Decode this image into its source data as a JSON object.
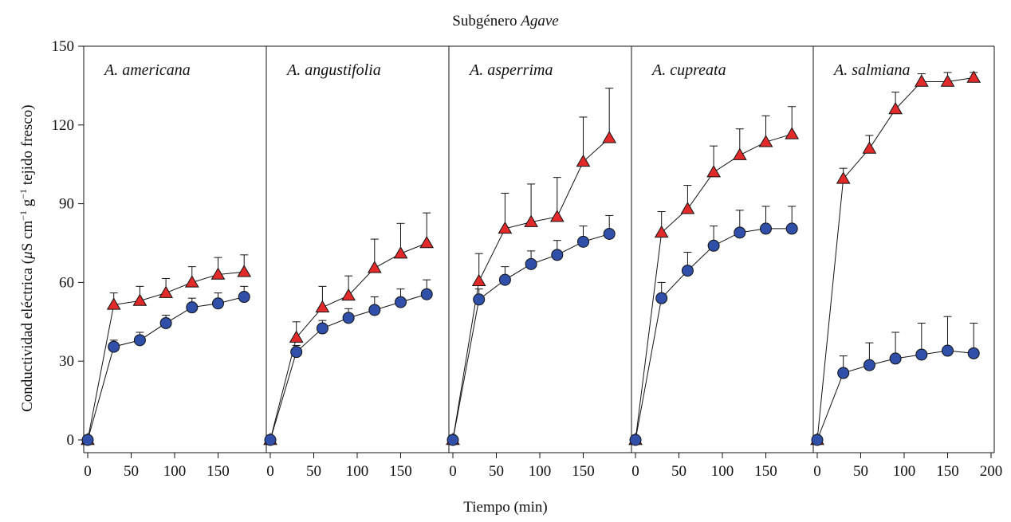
{
  "title_prefix": "Subgénero ",
  "title_italic": "Agave",
  "xlabel": "Tiempo (min)",
  "ylabel_parts": [
    "Conductividad eléctrica (",
    "μ",
    "S cm",
    "−1",
    " g",
    "−1",
    " tejido fresco)"
  ],
  "colors": {
    "triangle": "#e32a2a",
    "circle": "#2f4fa8",
    "line": "#111111"
  },
  "chart_data": {
    "type": "line",
    "ylim": [
      0,
      150
    ],
    "yticks": [
      0,
      30,
      60,
      90,
      120,
      150
    ],
    "xlim": [
      0,
      200
    ],
    "xticks": [
      0,
      50,
      100,
      150
    ],
    "xticks_last_panel": [
      0,
      50,
      100,
      150,
      200
    ],
    "x": [
      0,
      30,
      60,
      90,
      120,
      150,
      180
    ],
    "panels": [
      {
        "label": "A. americana",
        "series": [
          {
            "marker": "triangle",
            "values": [
              0,
              51.5,
              53,
              56,
              60,
              63,
              64
            ],
            "error": [
              0,
              4.5,
              5.5,
              5.5,
              6,
              6.5,
              6.5
            ]
          },
          {
            "marker": "circle",
            "values": [
              0,
              35.5,
              38,
              44.5,
              50.5,
              52,
              54.5
            ],
            "error": [
              0,
              2.5,
              3,
              3,
              3.5,
              4,
              4
            ]
          }
        ]
      },
      {
        "label": "A. angustifolia",
        "series": [
          {
            "marker": "triangle",
            "values": [
              0,
              39,
              50.5,
              55,
              65.5,
              71,
              75
            ],
            "error": [
              0,
              6,
              8,
              7.5,
              11,
              11.5,
              11.5
            ]
          },
          {
            "marker": "circle",
            "values": [
              0,
              33.5,
              42.5,
              46.5,
              49.5,
              52.5,
              55.5
            ],
            "error": [
              0,
              2.5,
              3,
              3.5,
              5,
              5,
              5.5
            ]
          }
        ]
      },
      {
        "label": "A. asperrima",
        "series": [
          {
            "marker": "triangle",
            "values": [
              0,
              60.5,
              80.5,
              83,
              85,
              106,
              115
            ],
            "error": [
              0,
              10.5,
              13.5,
              14.5,
              15,
              17,
              19
            ]
          },
          {
            "marker": "circle",
            "values": [
              0,
              53.5,
              61,
              67,
              70.5,
              75.5,
              78.5
            ],
            "error": [
              0,
              4,
              5,
              5,
              5.5,
              6,
              7
            ]
          }
        ]
      },
      {
        "label": "A. cupreata",
        "series": [
          {
            "marker": "triangle",
            "values": [
              0,
              79,
              88,
              102,
              108.5,
              113.5,
              116.5
            ],
            "error": [
              0,
              8,
              9,
              10,
              10,
              10,
              10.5
            ]
          },
          {
            "marker": "circle",
            "values": [
              0,
              54,
              64.5,
              74,
              79,
              80.5,
              80.5
            ],
            "error": [
              0,
              6,
              7,
              7.5,
              8.5,
              8.5,
              8.5
            ]
          }
        ]
      },
      {
        "label": "A. salmiana",
        "series": [
          {
            "marker": "triangle",
            "values": [
              0,
              99.5,
              111,
              126,
              136.5,
              136.5,
              138
            ],
            "error": [
              0,
              4,
              5,
              6.5,
              3,
              3.5,
              2
            ]
          },
          {
            "marker": "circle",
            "values": [
              0,
              25.5,
              28.5,
              31,
              32.5,
              34,
              33
            ],
            "error": [
              0,
              6.5,
              8.5,
              10,
              12,
              13,
              11.5
            ]
          }
        ]
      }
    ]
  }
}
